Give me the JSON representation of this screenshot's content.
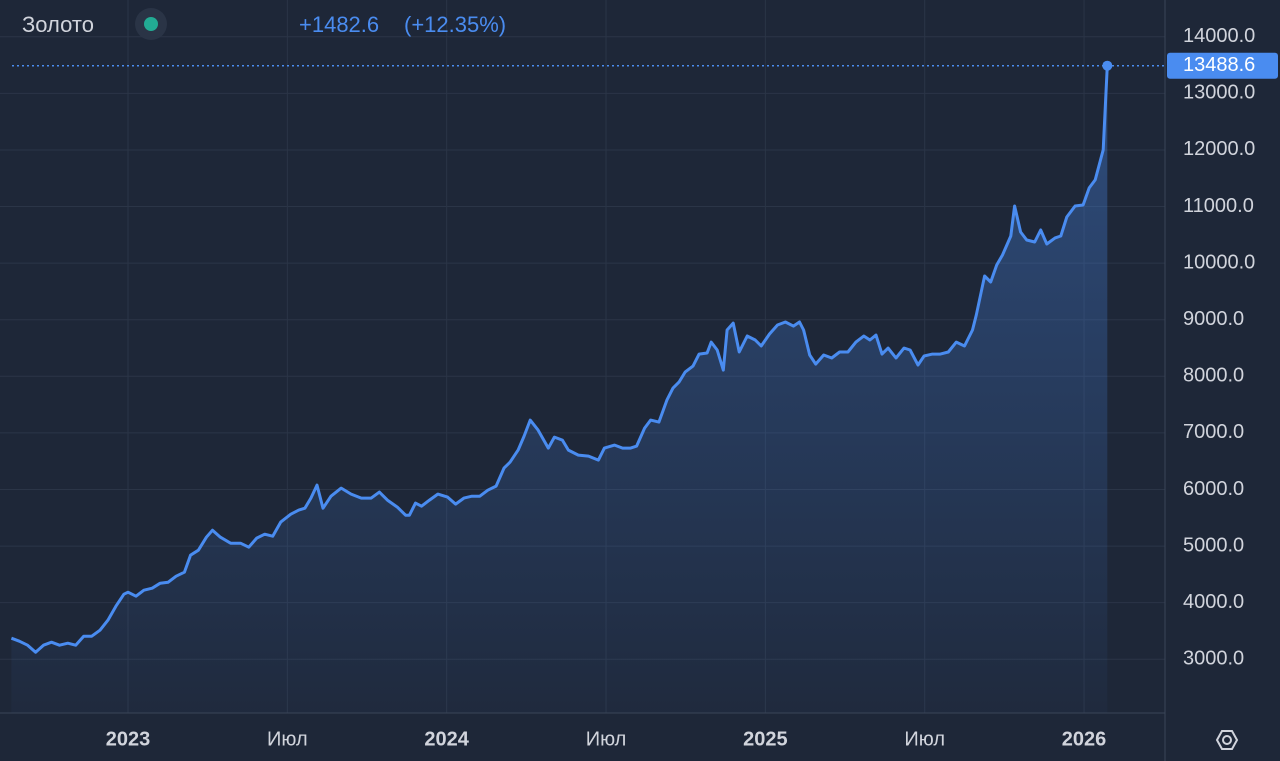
{
  "chart_data": {
    "type": "line",
    "change": "+1482.6",
    "change_pct": "(+12.35%)",
    "x": [
      2022.634,
      2022.659,
      2022.685,
      2022.71,
      2022.735,
      2022.76,
      2022.785,
      2022.811,
      2022.836,
      2022.861,
      2022.886,
      2022.912,
      2022.937,
      2022.962,
      2022.987,
      2023.0,
      2023.025,
      2023.05,
      2023.076,
      2023.101,
      2023.126,
      2023.151,
      2023.177,
      2023.196,
      2023.221,
      2023.246,
      2023.265,
      2023.29,
      2023.322,
      2023.353,
      2023.379,
      2023.404,
      2023.429,
      2023.454,
      2023.479,
      2023.511,
      2023.536,
      2023.555,
      2023.574,
      2023.593,
      2023.612,
      2023.637,
      2023.669,
      2023.7,
      2023.732,
      2023.763,
      2023.789,
      2023.814,
      2023.845,
      2023.871,
      2023.883,
      2023.902,
      2023.921,
      2023.946,
      2023.972,
      2024.003,
      2024.028,
      2024.054,
      2024.079,
      2024.104,
      2024.129,
      2024.155,
      2024.18,
      2024.199,
      2024.224,
      2024.243,
      2024.262,
      2024.287,
      2024.319,
      2024.338,
      2024.363,
      2024.382,
      2024.413,
      2024.445,
      2024.476,
      2024.495,
      2024.527,
      2024.552,
      2024.577,
      2024.596,
      2024.621,
      2024.64,
      2024.666,
      2024.691,
      2024.71,
      2024.729,
      2024.748,
      2024.773,
      2024.792,
      2024.817,
      2024.83,
      2024.849,
      2024.868,
      2024.88,
      2024.899,
      2024.918,
      2024.943,
      2024.968,
      2024.987,
      2025.013,
      2025.038,
      2025.063,
      2025.088,
      2025.107,
      2025.12,
      2025.139,
      2025.158,
      2025.183,
      2025.208,
      2025.233,
      2025.259,
      2025.284,
      2025.309,
      2025.328,
      2025.347,
      2025.366,
      2025.385,
      2025.41,
      2025.435,
      2025.454,
      2025.479,
      2025.498,
      2025.524,
      2025.549,
      2025.574,
      2025.599,
      2025.625,
      2025.65,
      2025.662,
      2025.688,
      2025.707,
      2025.726,
      2025.744,
      2025.77,
      2025.782,
      2025.801,
      2025.82,
      2025.845,
      2025.864,
      2025.883,
      2025.909,
      2025.927,
      2025.946,
      2025.972,
      2025.997,
      2026.016,
      2026.035,
      2026.06,
      2026.073
    ],
    "series": [
      {
        "name": "Золото",
        "color": "#4a8cf0",
        "values": [
          3371,
          3318,
          3248,
          3124,
          3248,
          3301,
          3248,
          3283,
          3248,
          3407,
          3407,
          3513,
          3690,
          3937,
          4149,
          4185,
          4114,
          4220,
          4255,
          4344,
          4362,
          4468,
          4538,
          4839,
          4927,
          5157,
          5281,
          5157,
          5051,
          5051,
          4980,
          5140,
          5210,
          5175,
          5423,
          5564,
          5635,
          5670,
          5847,
          6077,
          5670,
          5882,
          6024,
          5918,
          5847,
          5847,
          5953,
          5812,
          5688,
          5546,
          5546,
          5759,
          5705,
          5812,
          5918,
          5865,
          5741,
          5847,
          5882,
          5882,
          5988,
          6059,
          6377,
          6484,
          6696,
          6943,
          7226,
          7049,
          6731,
          6926,
          6873,
          6696,
          6607,
          6590,
          6519,
          6731,
          6784,
          6731,
          6731,
          6766,
          7085,
          7226,
          7191,
          7580,
          7792,
          7898,
          8075,
          8181,
          8393,
          8411,
          8605,
          8464,
          8110,
          8818,
          8941,
          8429,
          8712,
          8641,
          8535,
          8747,
          8906,
          8959,
          8888,
          8959,
          8818,
          8376,
          8216,
          8376,
          8323,
          8429,
          8429,
          8605,
          8712,
          8641,
          8729,
          8393,
          8499,
          8323,
          8499,
          8464,
          8199,
          8358,
          8393,
          8393,
          8429,
          8605,
          8535,
          8818,
          9083,
          9773,
          9667,
          9967,
          10144,
          10480,
          11010,
          10551,
          10409,
          10374,
          10586,
          10338,
          10445,
          10480,
          10816,
          11010,
          11028,
          11329,
          11470,
          12001,
          13488.6
        ]
      }
    ],
    "xlim": [
      2022.636,
      2026.254
    ],
    "xticks": [
      2023,
      {
        "value": 2023.5,
        "label": "Июл"
      },
      2024,
      {
        "value": 2024.5,
        "label": "Июл"
      },
      2025,
      {
        "value": 2025.5,
        "label": "Июл"
      },
      2026
    ],
    "ylim": [
      2050,
      14650
    ],
    "yticks": [
      {
        "value": 3000,
        "label": "3000.0"
      },
      {
        "value": 4000,
        "label": "4000.0"
      },
      {
        "value": 5000,
        "label": "5000.0"
      },
      {
        "value": 6000,
        "label": "6000.0"
      },
      {
        "value": 7000,
        "label": "7000.0"
      },
      {
        "value": 8000,
        "label": "8000.0"
      },
      {
        "value": 9000,
        "label": "9000.0"
      },
      {
        "value": 10000,
        "label": "10000.0"
      },
      {
        "value": 11000,
        "label": "11000.0"
      },
      {
        "value": 12000,
        "label": "12000.0"
      },
      {
        "value": 13000,
        "label": "13000.0"
      },
      {
        "value": 14000,
        "label": "14000.0"
      }
    ],
    "grid": true
  }
}
